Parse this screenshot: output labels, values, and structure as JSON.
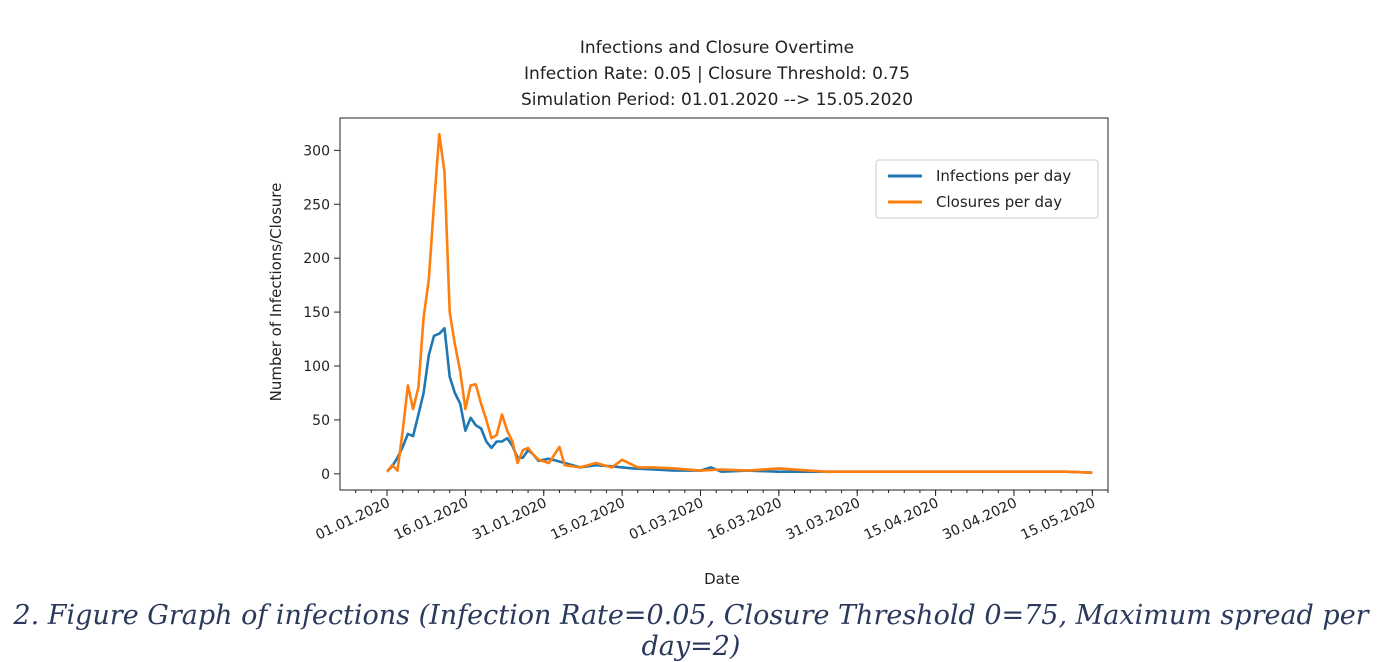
{
  "caption": "2. Figure Graph of infections (Infection Rate=0.05, Closure Threshold 0=75, Maximum spread per day=2)",
  "chart_data": {
    "type": "line",
    "title": "Infections and Closure Overtime",
    "subtitle": [
      "Infection Rate: 0.05 | Closure Threshold: 0.75",
      "Simulation Period: 01.01.2020 --> 15.05.2020"
    ],
    "xlabel": "Date",
    "ylabel": "Number of Infections/Closure",
    "xlim": [
      "2019-12-23",
      "2020-05-18"
    ],
    "ylim": [
      -15,
      330
    ],
    "yticks": [
      0,
      50,
      100,
      150,
      200,
      250,
      300
    ],
    "xticks": [
      "2020-01-01",
      "2020-01-16",
      "2020-01-31",
      "2020-02-15",
      "2020-03-01",
      "2020-03-16",
      "2020-03-31",
      "2020-04-15",
      "2020-04-30",
      "2020-05-15"
    ],
    "xtick_labels": [
      "01.01.2020",
      "16.01.2020",
      "31.01.2020",
      "15.02.2020",
      "01.03.2020",
      "16.03.2020",
      "31.03.2020",
      "15.04.2020",
      "30.04.2020",
      "15.05.2020"
    ],
    "grid": false,
    "legend_position": "top-right",
    "series": [
      {
        "name": "Infections per day",
        "color": "#1f77b4",
        "x": [
          "2020-01-01",
          "2020-01-02",
          "2020-01-03",
          "2020-01-04",
          "2020-01-05",
          "2020-01-06",
          "2020-01-07",
          "2020-01-08",
          "2020-01-09",
          "2020-01-10",
          "2020-01-11",
          "2020-01-12",
          "2020-01-13",
          "2020-01-14",
          "2020-01-15",
          "2020-01-16",
          "2020-01-17",
          "2020-01-18",
          "2020-01-19",
          "2020-01-20",
          "2020-01-21",
          "2020-01-22",
          "2020-01-23",
          "2020-01-24",
          "2020-01-25",
          "2020-01-26",
          "2020-01-27",
          "2020-01-28",
          "2020-01-29",
          "2020-01-30",
          "2020-02-01",
          "2020-02-04",
          "2020-02-07",
          "2020-02-10",
          "2020-02-13",
          "2020-02-17",
          "2020-02-21",
          "2020-02-25",
          "2020-03-01",
          "2020-03-03",
          "2020-03-05",
          "2020-03-10",
          "2020-03-16",
          "2020-03-25",
          "2020-04-01",
          "2020-04-10",
          "2020-04-20",
          "2020-04-30",
          "2020-05-05",
          "2020-05-10",
          "2020-05-15"
        ],
        "y": [
          2,
          7,
          15,
          25,
          37,
          35,
          55,
          75,
          110,
          128,
          130,
          135,
          90,
          75,
          65,
          40,
          52,
          45,
          42,
          30,
          24,
          30,
          30,
          33,
          26,
          15,
          15,
          22,
          18,
          12,
          14,
          10,
          6,
          8,
          7,
          5,
          4,
          3,
          3,
          6,
          2,
          3,
          2,
          2,
          2,
          2,
          2,
          2,
          2,
          2,
          1
        ]
      },
      {
        "name": "Closures per day",
        "color": "#ff7f0e",
        "x": [
          "2020-01-01",
          "2020-01-02",
          "2020-01-03",
          "2020-01-04",
          "2020-01-05",
          "2020-01-06",
          "2020-01-07",
          "2020-01-08",
          "2020-01-09",
          "2020-01-10",
          "2020-01-11",
          "2020-01-12",
          "2020-01-13",
          "2020-01-14",
          "2020-01-15",
          "2020-01-16",
          "2020-01-17",
          "2020-01-18",
          "2020-01-19",
          "2020-01-20",
          "2020-01-21",
          "2020-01-22",
          "2020-01-23",
          "2020-01-24",
          "2020-01-25",
          "2020-01-26",
          "2020-01-27",
          "2020-01-28",
          "2020-01-29",
          "2020-01-30",
          "2020-02-01",
          "2020-02-03",
          "2020-02-04",
          "2020-02-07",
          "2020-02-10",
          "2020-02-13",
          "2020-02-15",
          "2020-02-18",
          "2020-02-21",
          "2020-02-25",
          "2020-03-01",
          "2020-03-05",
          "2020-03-10",
          "2020-03-16",
          "2020-03-25",
          "2020-04-01",
          "2020-04-10",
          "2020-04-20",
          "2020-04-30",
          "2020-05-05",
          "2020-05-10",
          "2020-05-15"
        ],
        "y": [
          2,
          8,
          3,
          40,
          82,
          60,
          80,
          145,
          180,
          250,
          315,
          280,
          150,
          120,
          95,
          60,
          82,
          83,
          65,
          50,
          33,
          36,
          55,
          40,
          30,
          10,
          22,
          24,
          18,
          13,
          10,
          25,
          8,
          6,
          10,
          6,
          13,
          6,
          6,
          5,
          3,
          4,
          3,
          5,
          2,
          2,
          2,
          2,
          2,
          2,
          2,
          1
        ]
      }
    ]
  }
}
